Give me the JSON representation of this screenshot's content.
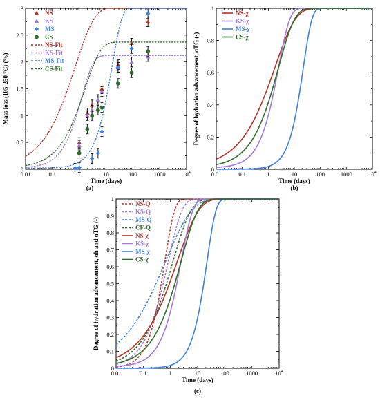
{
  "colors": {
    "NS": "#b5322a",
    "KS": "#a079d9",
    "MS": "#3d7fe0",
    "CS": "#2e6a2a",
    "CF": "#2e6a2a"
  },
  "chart_data": [
    {
      "id": "a",
      "type": "scatter",
      "panel_label": "(a)",
      "xlabel": "Time (days)",
      "ylabel": "Mass loss (105-250 °C) (%)",
      "xscale": "log",
      "xlim": [
        0.01,
        10000
      ],
      "ylim": [
        0,
        3
      ],
      "x_tick_labels": [
        "0.01",
        "0.1",
        "1",
        "10",
        "100",
        "1000",
        "10^4"
      ],
      "y_tick_labels": [
        "0",
        "0.5",
        "1",
        "1.5",
        "2",
        "2.5",
        "3"
      ],
      "grid": false,
      "legend_position": "top-left",
      "series": [
        {
          "name": "NS",
          "kind": "points",
          "marker": "triangle",
          "color": "NS",
          "x": [
            1,
            2,
            3,
            5,
            7,
            28,
            90,
            365
          ],
          "y": [
            0.5,
            1.05,
            1.2,
            1.3,
            1.5,
            1.95,
            2.35,
            2.75
          ]
        },
        {
          "name": "KS",
          "kind": "points",
          "marker": "triangle",
          "color": "KS",
          "x": [
            1,
            2,
            3,
            5,
            7,
            28,
            90,
            365
          ],
          "y": [
            0.45,
            1.0,
            1.1,
            1.3,
            1.45,
            1.9,
            2.0,
            2.1
          ]
        },
        {
          "name": "MS",
          "kind": "points",
          "marker": "diamond",
          "color": "MS",
          "x": [
            0.7,
            1,
            3,
            5,
            7,
            28,
            90,
            365
          ],
          "y": [
            0.02,
            0.03,
            0.2,
            0.3,
            0.7,
            1.9,
            2.25,
            2.9
          ]
        },
        {
          "name": "CS",
          "kind": "points",
          "marker": "circle",
          "color": "CS",
          "x": [
            1,
            2,
            3,
            5,
            7,
            28,
            90,
            365
          ],
          "y": [
            0.3,
            0.75,
            1.0,
            1.1,
            1.15,
            1.6,
            1.8,
            2.2
          ]
        },
        {
          "name": "NS-Fit",
          "kind": "fit",
          "color": "NS",
          "a": 3.0,
          "k": 1.4,
          "n": 0.6
        },
        {
          "name": "KS-Fit",
          "kind": "fit",
          "color": "KS",
          "a": 2.1,
          "k": 0.8,
          "n": 1.0
        },
        {
          "name": "MS-Fit",
          "kind": "fit",
          "color": "MS",
          "a": 3.0,
          "k": 0.06,
          "n": 1.15
        },
        {
          "name": "CS-Fit",
          "kind": "fit",
          "color": "CS",
          "a": 2.35,
          "k": 0.6,
          "n": 0.75
        }
      ]
    },
    {
      "id": "b",
      "type": "line",
      "panel_label": "(b)",
      "xlabel": "Time (days)",
      "ylabel": "Degree of hydration advancement, αTG (-)",
      "xscale": "log",
      "xlim": [
        0.01,
        10000
      ],
      "ylim": [
        0,
        1
      ],
      "x_tick_labels": [
        "0.01",
        "0.1",
        "1",
        "10",
        "100",
        "1000",
        "10^4"
      ],
      "y_tick_labels": [
        "0",
        "0.2",
        "0.4",
        "0.6",
        "0.8",
        "1"
      ],
      "grid": false,
      "legend_position": "top-left",
      "series": [
        {
          "name": "NS-χ",
          "color": "NS",
          "style": "solid",
          "k": 0.55,
          "n": 0.55,
          "base": 0.008
        },
        {
          "name": "KS-χ",
          "color": "KS",
          "style": "solid",
          "k": 0.4,
          "n": 1.0,
          "base": 0.008
        },
        {
          "name": "MS-χ",
          "color": "MS",
          "style": "solid",
          "k": 0.045,
          "n": 1.3,
          "base": 0.0
        },
        {
          "name": "CS-χ",
          "color": "CS",
          "style": "solid",
          "k": 0.4,
          "n": 0.7,
          "base": 0.008
        }
      ]
    },
    {
      "id": "c",
      "type": "line",
      "panel_label": "(c)",
      "xlabel": "Time (days)",
      "ylabel": "Degree of hydration advancement, αh and αTG (-)",
      "xscale": "log",
      "xlim": [
        0.01,
        10000
      ],
      "ylim": [
        0,
        1
      ],
      "x_tick_labels": [
        "0.01",
        "0.1",
        "1",
        "10",
        "100",
        "1000",
        "10^4"
      ],
      "y_tick_labels": [
        "0",
        "0.1",
        "0.2",
        "0.3",
        "0.4",
        "0.5",
        "0.6",
        "0.7",
        "0.8",
        "0.9",
        "1"
      ],
      "grid": false,
      "legend_position": "top-left",
      "series": [
        {
          "name": "NS-Q",
          "color": "NS",
          "style": "dashed",
          "k": 1.6,
          "n": 1.2,
          "base": 0.0
        },
        {
          "name": "KS-Q",
          "color": "KS",
          "style": "dashed",
          "k": 1.2,
          "n": 0.85,
          "base": 0.0
        },
        {
          "name": "MS-Q",
          "color": "MS",
          "style": "dashed",
          "k": 1.5,
          "n": 0.45,
          "base": 0.0
        },
        {
          "name": "CF-Q",
          "color": "CF",
          "style": "dashed",
          "k": 0.8,
          "n": 0.65,
          "base": 0.0
        },
        {
          "name": "NS-χ",
          "color": "NS",
          "style": "solid",
          "k": 0.55,
          "n": 0.55,
          "base": 0.008
        },
        {
          "name": "KS-χ",
          "color": "KS",
          "style": "solid",
          "k": 0.4,
          "n": 1.0,
          "base": 0.008
        },
        {
          "name": "MS-χ",
          "color": "MS",
          "style": "solid",
          "k": 0.045,
          "n": 1.3,
          "base": 0.0
        },
        {
          "name": "CS-χ",
          "color": "CS",
          "style": "solid",
          "k": 0.4,
          "n": 0.7,
          "base": 0.008
        }
      ]
    }
  ]
}
